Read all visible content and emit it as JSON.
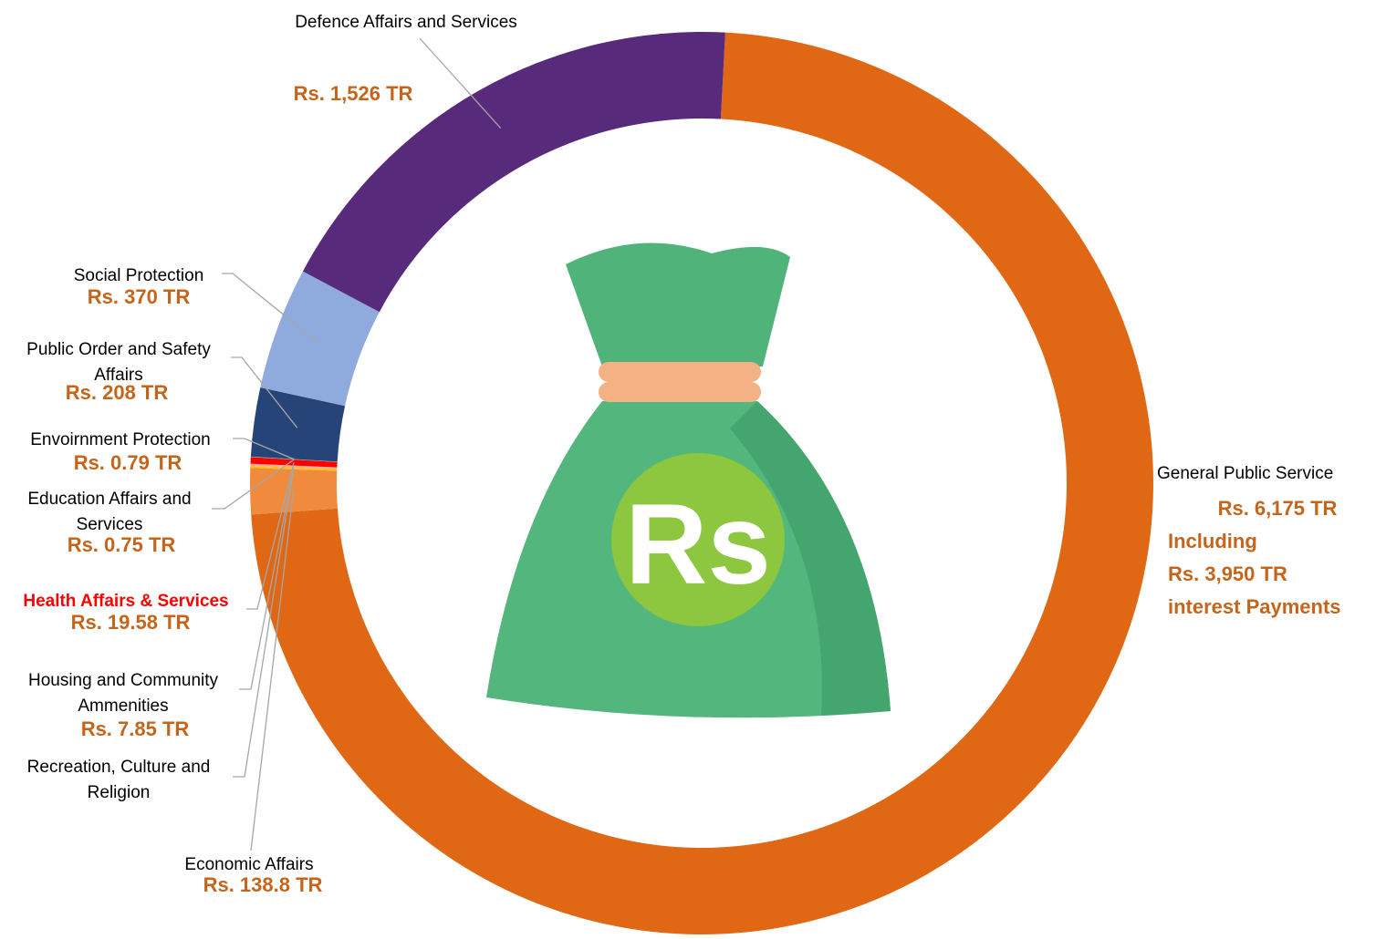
{
  "chart_data": {
    "type": "donut",
    "categories": [
      "General Public Service",
      "Economic Affairs",
      "Recreation, Culture and Religion",
      "Housing and Community Ammenities",
      "Health Affairs & Services",
      "Education Affairs and Services",
      "Envoirnment Protection",
      "Public Order and Safety Affairs",
      "Social Protection",
      "Defence Affairs and Services"
    ],
    "values": [
      6175,
      138.8,
      5,
      7.85,
      19.58,
      0.75,
      0.79,
      208,
      370,
      1526
    ],
    "value_labels": [
      "Rs. 6,175 TR",
      "Rs. 138.8 TR",
      null,
      "Rs. 7.85 TR",
      "Rs. 19.58 TR",
      "Rs. 0.75 TR",
      "Rs. 0.79 TR",
      "Rs. 208 TR",
      "Rs. 370 TR",
      "Rs. 1,526 TR"
    ],
    "colors": [
      "#e06815",
      "#f08a3c",
      "#ffc000",
      "#f4b183",
      "#ff0000",
      "#5b9bd5",
      "#70ad47",
      "#264478",
      "#8faadc",
      "#582a7c"
    ],
    "label_colors": [
      "#000000",
      "#000000",
      "#000000",
      "#000000",
      "#ff0000",
      "#000000",
      "#000000",
      "#000000",
      "#000000",
      "#000000"
    ],
    "annotations": [
      "Including",
      "Rs. 3,950 TR",
      "interest Payments"
    ],
    "center_text": "Rs"
  }
}
